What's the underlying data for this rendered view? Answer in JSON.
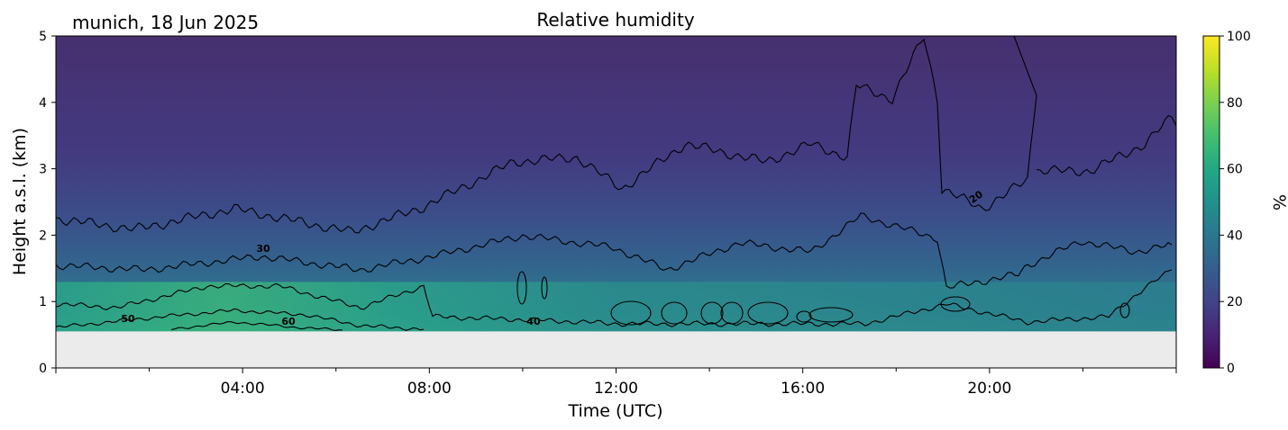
{
  "header": {
    "site_date": "munich, 18 Jun 2025"
  },
  "chart_data": {
    "type": "heatmap",
    "title": "Relative humidity",
    "xlabel": "Time (UTC)",
    "ylabel": "Height a.s.l. (km)",
    "xlim_hours": [
      0,
      24
    ],
    "ylim_km": [
      0,
      5
    ],
    "x_ticks": [
      "04:00",
      "08:00",
      "12:00",
      "16:00",
      "20:00"
    ],
    "y_ticks": [
      "0",
      "1",
      "2",
      "3",
      "4",
      "5"
    ],
    "ground_level_km": 0.55,
    "colorbar": {
      "label": "%",
      "colormap": "viridis",
      "range": [
        0,
        100
      ],
      "ticks": [
        "0",
        "20",
        "40",
        "60",
        "80",
        "100"
      ]
    },
    "contour_levels": [
      20,
      30,
      40,
      50,
      60
    ],
    "contour_labels": [
      "20",
      "30",
      "40",
      "50",
      "60"
    ],
    "colors": {
      "no_data": "#ebebeb",
      "contour": "#000000"
    }
  }
}
